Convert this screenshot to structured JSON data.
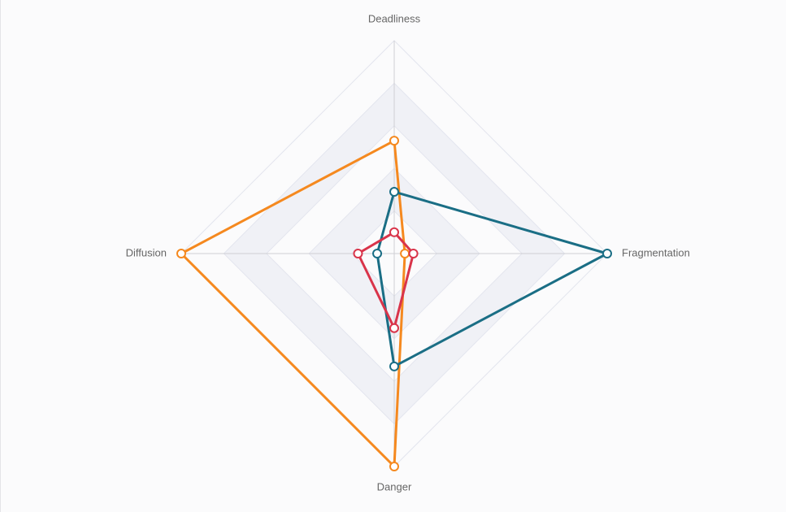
{
  "chart_data": {
    "type": "radar",
    "indicators": [
      "Deadliness",
      "Fragmentation",
      "Danger",
      "Diffusion"
    ],
    "rlim": [
      0,
      100
    ],
    "rticks": [
      20,
      40,
      60,
      80,
      100
    ],
    "series": [
      {
        "color": "#f5891f",
        "values": [
          53,
          5,
          100,
          100
        ]
      },
      {
        "color": "#1a6e85",
        "values": [
          29,
          100,
          53,
          8
        ]
      },
      {
        "color": "#d9344a",
        "values": [
          10,
          9,
          35,
          17
        ]
      }
    ]
  }
}
